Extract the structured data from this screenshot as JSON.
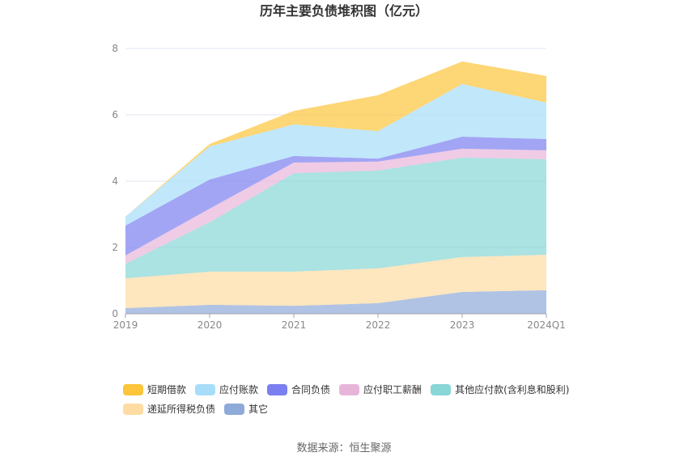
{
  "chart_data": {
    "type": "area",
    "stacked": true,
    "title": "历年主要负债堆积图（亿元）",
    "categories": [
      "2019",
      "2020",
      "2021",
      "2022",
      "2023",
      "2024Q1"
    ],
    "ylim": [
      0,
      8
    ],
    "yticks": [
      0,
      2,
      4,
      6,
      8
    ],
    "grid": true,
    "legend_position": "bottom",
    "series": [
      {
        "name": "短期借款",
        "color": "#fcc53a",
        "values": [
          0.0,
          0.07,
          0.41,
          1.08,
          0.68,
          0.8
        ]
      },
      {
        "name": "应付账款",
        "color": "#a7ddf9",
        "values": [
          0.27,
          1.0,
          0.95,
          0.83,
          1.59,
          1.1
        ]
      },
      {
        "name": "合同负债",
        "color": "#7b7ff0",
        "values": [
          0.9,
          0.88,
          0.2,
          0.09,
          0.36,
          0.34
        ]
      },
      {
        "name": "应付职工薪酬",
        "color": "#e8b5da",
        "values": [
          0.25,
          0.41,
          0.32,
          0.27,
          0.27,
          0.27
        ]
      },
      {
        "name": "其他应付款(含利息和股利)",
        "color": "#88d6d6",
        "values": [
          0.44,
          1.49,
          2.97,
          2.95,
          3.0,
          2.88
        ]
      },
      {
        "name": "递延所得税负债",
        "color": "#fedca3",
        "values": [
          0.9,
          1.0,
          1.03,
          1.05,
          1.05,
          1.07
        ]
      },
      {
        "name": "其它",
        "color": "#8eaad9",
        "values": [
          0.17,
          0.27,
          0.24,
          0.32,
          0.66,
          0.71
        ]
      }
    ]
  },
  "source": "数据来源：恒生聚源"
}
